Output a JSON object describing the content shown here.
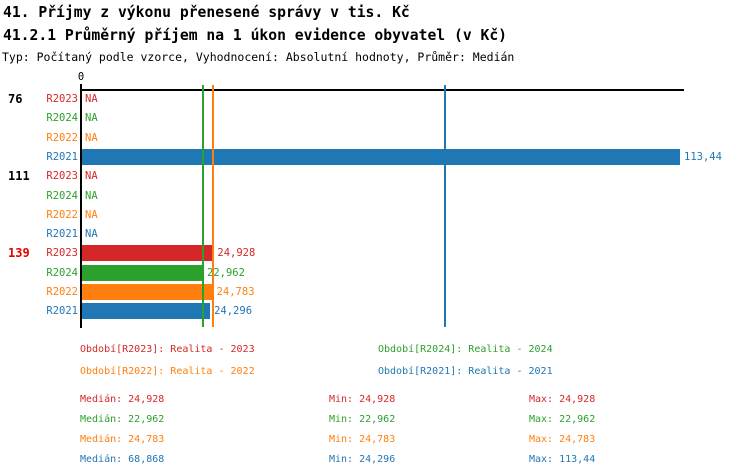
{
  "page": {
    "title": "41. Příjmy z výkonu přenesené správy v tis. Kč",
    "subtitle": "41.2.1 Průměrný příjem na 1 úkon evidence obyvatel (v Kč)",
    "meta": "Typ: Počítaný podle vzorce, Vyhodnocení: Absolutní hodnoty, Průměr: Medián"
  },
  "colors": {
    "series": {
      "R2023": "#d62728",
      "R2024": "#2ca02c",
      "R2022": "#ff7f0e",
      "R2021": "#1f77b4"
    },
    "highlight_group": "#e60000",
    "axis": "#000000",
    "background": "#ffffff"
  },
  "chart_data": {
    "type": "bar",
    "orientation": "horizontal",
    "unit": "Kč",
    "zero_label": "0",
    "xlim": [
      0,
      114.2
    ],
    "grid": false,
    "series_order": [
      "R2023",
      "R2024",
      "R2022",
      "R2021"
    ],
    "groups": [
      {
        "label": "76",
        "highlighted": false,
        "bars": [
          {
            "series": "R2023",
            "value": null,
            "display": "NA"
          },
          {
            "series": "R2024",
            "value": null,
            "display": "NA"
          },
          {
            "series": "R2022",
            "value": null,
            "display": "NA"
          },
          {
            "series": "R2021",
            "value": 113.44,
            "display": "113,44"
          }
        ]
      },
      {
        "label": "111",
        "highlighted": false,
        "bars": [
          {
            "series": "R2023",
            "value": null,
            "display": "NA"
          },
          {
            "series": "R2024",
            "value": null,
            "display": "NA"
          },
          {
            "series": "R2022",
            "value": null,
            "display": "NA"
          },
          {
            "series": "R2021",
            "value": null,
            "display": "NA"
          }
        ]
      },
      {
        "label": "139",
        "highlighted": true,
        "bars": [
          {
            "series": "R2023",
            "value": 24.928,
            "display": "24,928"
          },
          {
            "series": "R2024",
            "value": 22.962,
            "display": "22,962"
          },
          {
            "series": "R2022",
            "value": 24.783,
            "display": "24,783"
          },
          {
            "series": "R2021",
            "value": 24.296,
            "display": "24,296"
          }
        ]
      }
    ],
    "median_lines": [
      {
        "series": "R2024",
        "value": 22.962
      },
      {
        "series": "R2022",
        "value": 24.783
      },
      {
        "series": "R2021",
        "value": 68.868
      }
    ]
  },
  "legend": {
    "items": [
      {
        "series": "R2023",
        "label": "Období[R2023]: Realita - 2023"
      },
      {
        "series": "R2024",
        "label": "Období[R2024]: Realita - 2024"
      },
      {
        "series": "R2022",
        "label": "Období[R2022]: Realita - 2022"
      },
      {
        "series": "R2021",
        "label": "Období[R2021]: Realita - 2021"
      }
    ]
  },
  "stats": {
    "labels": {
      "median": "Medián:",
      "min": "Min:",
      "max": "Max:"
    },
    "rows": [
      {
        "series": "R2023",
        "median": "24,928",
        "min": "24,928",
        "max": "24,928"
      },
      {
        "series": "R2024",
        "median": "22,962",
        "min": "22,962",
        "max": "22,962"
      },
      {
        "series": "R2022",
        "median": "24,783",
        "min": "24,783",
        "max": "24,783"
      },
      {
        "series": "R2021",
        "median": "68,868",
        "min": "24,296",
        "max": "113,44"
      }
    ]
  }
}
